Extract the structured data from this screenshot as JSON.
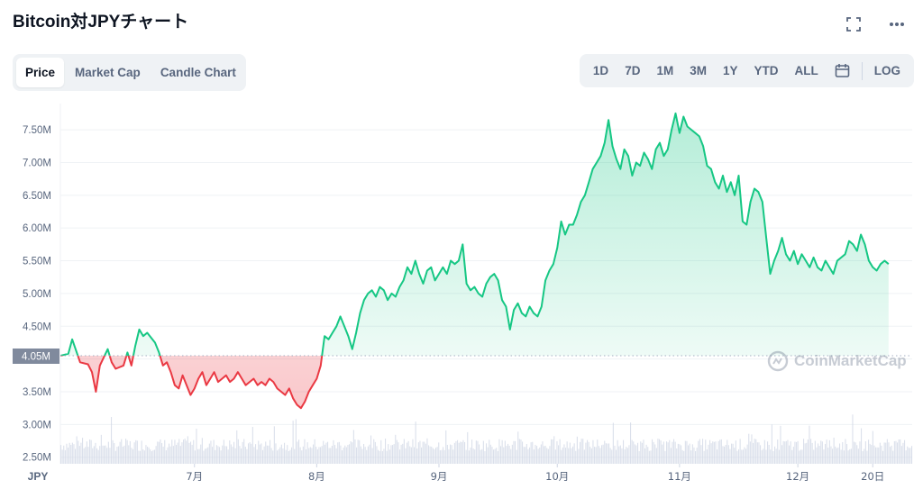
{
  "header": {
    "title": "Bitcoin対JPYチャート"
  },
  "icons": {
    "fullscreen": "fullscreen-icon",
    "more": "more-icon",
    "calendar": "calendar-icon"
  },
  "tabs": [
    {
      "label": "Price",
      "active": true
    },
    {
      "label": "Market Cap",
      "active": false
    },
    {
      "label": "Candle Chart",
      "active": false
    }
  ],
  "ranges": [
    "1D",
    "7D",
    "1M",
    "3M",
    "1Y",
    "YTD",
    "ALL"
  ],
  "log_label": "LOG",
  "watermark": "CoinMarketCap",
  "colors": {
    "up": "#16c784",
    "down": "#ea3943",
    "grid": "#eff2f5",
    "axis_text": "#58667e",
    "current_tag": "#808a9d"
  },
  "chart_data": {
    "type": "area",
    "currency": "JPY",
    "current_value": 4050000,
    "current_label": "4.05M",
    "baseline": 4050000,
    "ylim": [
      2400000,
      7900000
    ],
    "y_ticks": [
      {
        "v": 2500000,
        "label": "2.50M"
      },
      {
        "v": 3000000,
        "label": "3.00M"
      },
      {
        "v": 3500000,
        "label": "3.50M"
      },
      {
        "v": 4000000,
        "label": "4.00M"
      },
      {
        "v": 4500000,
        "label": "4.50M"
      },
      {
        "v": 5000000,
        "label": "5.00M"
      },
      {
        "v": 5500000,
        "label": "5.50M"
      },
      {
        "v": 6000000,
        "label": "6.00M"
      },
      {
        "v": 6500000,
        "label": "6.50M"
      },
      {
        "v": 7000000,
        "label": "7.00M"
      },
      {
        "v": 7500000,
        "label": "7.50M"
      }
    ],
    "x_axis_label": "JPY",
    "x_ticks": [
      {
        "day": 34,
        "label": "7月"
      },
      {
        "day": 65,
        "label": "8月"
      },
      {
        "day": 96,
        "label": "9月"
      },
      {
        "day": 126,
        "label": "10月"
      },
      {
        "day": 157,
        "label": "11月"
      },
      {
        "day": 187,
        "label": "12月"
      },
      {
        "day": 206,
        "label": "20日"
      }
    ],
    "x_range": [
      0,
      216
    ],
    "series": [
      {
        "values": [
          [
            0,
            4050000
          ],
          [
            2,
            4080000
          ],
          [
            3,
            4300000
          ],
          [
            5,
            3950000
          ],
          [
            7,
            3920000
          ],
          [
            8,
            3800000
          ],
          [
            9,
            3500000
          ],
          [
            10,
            3900000
          ],
          [
            12,
            4150000
          ],
          [
            13,
            3950000
          ],
          [
            14,
            3850000
          ],
          [
            16,
            3900000
          ],
          [
            17,
            4100000
          ],
          [
            18,
            3900000
          ],
          [
            19,
            4200000
          ],
          [
            20,
            4450000
          ],
          [
            21,
            4350000
          ],
          [
            22,
            4400000
          ],
          [
            24,
            4250000
          ],
          [
            25,
            4100000
          ],
          [
            26,
            3900000
          ],
          [
            27,
            3950000
          ],
          [
            28,
            3800000
          ],
          [
            29,
            3600000
          ],
          [
            30,
            3550000
          ],
          [
            31,
            3750000
          ],
          [
            32,
            3600000
          ],
          [
            33,
            3450000
          ],
          [
            34,
            3550000
          ],
          [
            35,
            3700000
          ],
          [
            36,
            3800000
          ],
          [
            37,
            3600000
          ],
          [
            38,
            3700000
          ],
          [
            39,
            3800000
          ],
          [
            40,
            3650000
          ],
          [
            41,
            3700000
          ],
          [
            42,
            3750000
          ],
          [
            43,
            3650000
          ],
          [
            44,
            3700000
          ],
          [
            45,
            3800000
          ],
          [
            46,
            3700000
          ],
          [
            47,
            3600000
          ],
          [
            48,
            3650000
          ],
          [
            49,
            3700000
          ],
          [
            50,
            3600000
          ],
          [
            51,
            3650000
          ],
          [
            52,
            3600000
          ],
          [
            53,
            3700000
          ],
          [
            54,
            3650000
          ],
          [
            55,
            3550000
          ],
          [
            56,
            3500000
          ],
          [
            57,
            3450000
          ],
          [
            58,
            3550000
          ],
          [
            59,
            3400000
          ],
          [
            60,
            3300000
          ],
          [
            61,
            3250000
          ],
          [
            62,
            3350000
          ],
          [
            63,
            3500000
          ],
          [
            64,
            3600000
          ],
          [
            65,
            3700000
          ],
          [
            66,
            3900000
          ],
          [
            67,
            4350000
          ],
          [
            68,
            4300000
          ],
          [
            69,
            4400000
          ],
          [
            70,
            4500000
          ],
          [
            71,
            4650000
          ],
          [
            72,
            4500000
          ],
          [
            73,
            4350000
          ],
          [
            74,
            4150000
          ],
          [
            75,
            4400000
          ],
          [
            76,
            4700000
          ],
          [
            77,
            4900000
          ],
          [
            78,
            5000000
          ],
          [
            79,
            5050000
          ],
          [
            80,
            4950000
          ],
          [
            81,
            5100000
          ],
          [
            82,
            5050000
          ],
          [
            83,
            4900000
          ],
          [
            84,
            5000000
          ],
          [
            85,
            4950000
          ],
          [
            86,
            5100000
          ],
          [
            87,
            5200000
          ],
          [
            88,
            5400000
          ],
          [
            89,
            5300000
          ],
          [
            90,
            5500000
          ],
          [
            91,
            5300000
          ],
          [
            92,
            5150000
          ],
          [
            93,
            5350000
          ],
          [
            94,
            5400000
          ],
          [
            95,
            5200000
          ],
          [
            96,
            5300000
          ],
          [
            97,
            5400000
          ],
          [
            98,
            5300000
          ],
          [
            99,
            5500000
          ],
          [
            100,
            5450000
          ],
          [
            101,
            5500000
          ],
          [
            102,
            5750000
          ],
          [
            103,
            5150000
          ],
          [
            104,
            5050000
          ],
          [
            105,
            5100000
          ],
          [
            106,
            5000000
          ],
          [
            107,
            4950000
          ],
          [
            108,
            5150000
          ],
          [
            109,
            5250000
          ],
          [
            110,
            5300000
          ],
          [
            111,
            5200000
          ],
          [
            112,
            4900000
          ],
          [
            113,
            4800000
          ],
          [
            114,
            4450000
          ],
          [
            115,
            4750000
          ],
          [
            116,
            4850000
          ],
          [
            117,
            4700000
          ],
          [
            118,
            4650000
          ],
          [
            119,
            4800000
          ],
          [
            120,
            4700000
          ],
          [
            121,
            4650000
          ],
          [
            122,
            4800000
          ],
          [
            123,
            5200000
          ],
          [
            124,
            5350000
          ],
          [
            125,
            5450000
          ],
          [
            126,
            5700000
          ],
          [
            127,
            6100000
          ],
          [
            128,
            5900000
          ],
          [
            129,
            6050000
          ],
          [
            130,
            6050000
          ],
          [
            131,
            6200000
          ],
          [
            132,
            6400000
          ],
          [
            133,
            6500000
          ],
          [
            134,
            6700000
          ],
          [
            135,
            6900000
          ],
          [
            136,
            7000000
          ],
          [
            137,
            7100000
          ],
          [
            138,
            7300000
          ],
          [
            139,
            7650000
          ],
          [
            140,
            7250000
          ],
          [
            141,
            7050000
          ],
          [
            142,
            6900000
          ],
          [
            143,
            7200000
          ],
          [
            144,
            7100000
          ],
          [
            145,
            6800000
          ],
          [
            146,
            7000000
          ],
          [
            147,
            6950000
          ],
          [
            148,
            7150000
          ],
          [
            149,
            7050000
          ],
          [
            150,
            6900000
          ],
          [
            151,
            7200000
          ],
          [
            152,
            7300000
          ],
          [
            153,
            7100000
          ],
          [
            154,
            7200000
          ],
          [
            155,
            7500000
          ],
          [
            156,
            7750000
          ],
          [
            157,
            7450000
          ],
          [
            158,
            7700000
          ],
          [
            159,
            7550000
          ],
          [
            160,
            7500000
          ],
          [
            161,
            7450000
          ],
          [
            162,
            7400000
          ],
          [
            163,
            7250000
          ],
          [
            164,
            6950000
          ],
          [
            165,
            6900000
          ],
          [
            166,
            6700000
          ],
          [
            167,
            6600000
          ],
          [
            168,
            6800000
          ],
          [
            169,
            6550000
          ],
          [
            170,
            6700000
          ],
          [
            171,
            6500000
          ],
          [
            172,
            6800000
          ],
          [
            173,
            6100000
          ],
          [
            174,
            6050000
          ],
          [
            175,
            6400000
          ],
          [
            176,
            6600000
          ],
          [
            177,
            6550000
          ],
          [
            178,
            6400000
          ],
          [
            179,
            5850000
          ],
          [
            180,
            5300000
          ],
          [
            181,
            5500000
          ],
          [
            182,
            5650000
          ],
          [
            183,
            5850000
          ],
          [
            184,
            5600000
          ],
          [
            185,
            5500000
          ],
          [
            186,
            5650000
          ],
          [
            187,
            5450000
          ],
          [
            188,
            5600000
          ],
          [
            189,
            5500000
          ],
          [
            190,
            5400000
          ],
          [
            191,
            5550000
          ],
          [
            192,
            5400000
          ],
          [
            193,
            5350000
          ],
          [
            194,
            5500000
          ],
          [
            195,
            5400000
          ],
          [
            196,
            5300000
          ],
          [
            197,
            5500000
          ],
          [
            198,
            5550000
          ],
          [
            199,
            5600000
          ],
          [
            200,
            5800000
          ],
          [
            201,
            5750000
          ],
          [
            202,
            5650000
          ],
          [
            203,
            5900000
          ],
          [
            204,
            5750000
          ],
          [
            205,
            5500000
          ],
          [
            206,
            5400000
          ],
          [
            207,
            5350000
          ],
          [
            208,
            5450000
          ],
          [
            209,
            5500000
          ],
          [
            210,
            5450000
          ]
        ]
      }
    ]
  }
}
